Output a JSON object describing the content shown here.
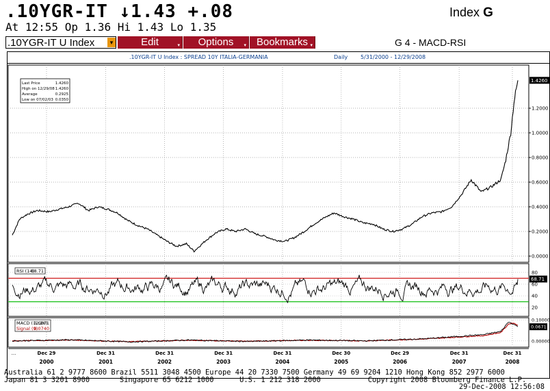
{
  "header": {
    "ticker_line": ".10YGR-IT ↓1.43 +.08",
    "index_label": "Index",
    "index_code": "G",
    "quote_line": "At 12:55  Op 1.36 Hi 1.43 Lo 1.35",
    "security": ".10YGR-IT U Index",
    "buttons": {
      "edit": "Edit",
      "options": "Options",
      "bookmarks": "Bookmarks"
    },
    "screen_name": "G 4 - MACD-RSI"
  },
  "chart_header": {
    "description": ".10YGR-IT U Index : SPREAD 10Y ITALIA-GERMANIA",
    "period": "Daily",
    "range": "5/31/2000 - 12/29/2008"
  },
  "colors": {
    "button_red": "#a11226",
    "security_caret": "#e8950c",
    "header_text": "#0b3f8e",
    "rsi_upper_line": "#d02020",
    "rsi_lower_line": "#16c016",
    "macd_signal": "#b00000",
    "price_line": "#000000"
  },
  "chart_data": [
    {
      "type": "line",
      "title": "",
      "panel": "price",
      "x": [
        "2000-05-31",
        "2000-07-15",
        "2000-09-01",
        "2000-11-01",
        "2001-01-15",
        "2001-03-15",
        "2001-05-15",
        "2001-07-15",
        "2001-09-15",
        "2001-11-15",
        "2002-01-15",
        "2002-03-15",
        "2002-05-15",
        "2002-07-15",
        "2002-09-15",
        "2002-11-15",
        "2003-01-15",
        "2003-03-15",
        "2003-05-15",
        "2003-07-02",
        "2003-09-15",
        "2003-11-15",
        "2004-01-15",
        "2004-03-15",
        "2004-05-15",
        "2004-07-15",
        "2004-09-15",
        "2004-11-15",
        "2005-01-15",
        "2005-03-15",
        "2005-05-15",
        "2005-07-15",
        "2005-09-15",
        "2005-11-15",
        "2006-01-15",
        "2006-03-15",
        "2006-05-15",
        "2006-07-15",
        "2006-09-15",
        "2006-11-15",
        "2007-01-15",
        "2007-03-15",
        "2007-05-15",
        "2007-07-15",
        "2007-09-15",
        "2007-11-15",
        "2008-01-15",
        "2008-03-15",
        "2008-05-15",
        "2008-07-15",
        "2008-09-15",
        "2008-10-15",
        "2008-11-15",
        "2008-12-05",
        "2008-12-29"
      ],
      "y": [
        0.17,
        0.3,
        0.34,
        0.37,
        0.36,
        0.38,
        0.4,
        0.43,
        0.37,
        0.4,
        0.38,
        0.35,
        0.29,
        0.25,
        0.22,
        0.17,
        0.12,
        0.08,
        0.1,
        0.04,
        0.13,
        0.19,
        0.22,
        0.2,
        0.22,
        0.18,
        0.16,
        0.13,
        0.12,
        0.15,
        0.2,
        0.26,
        0.31,
        0.35,
        0.32,
        0.3,
        0.27,
        0.26,
        0.22,
        0.2,
        0.22,
        0.26,
        0.32,
        0.35,
        0.36,
        0.4,
        0.5,
        0.62,
        0.52,
        0.56,
        0.62,
        0.78,
        1.0,
        1.25,
        1.426
      ],
      "ylim": [
        -0.05,
        1.55
      ],
      "y_ticks": [
        "0.0000",
        "0.2000",
        "0.4000",
        "0.6000",
        "0.8000",
        "1.0000",
        "1.2000"
      ],
      "last_value_label": "1.4260",
      "legend_box": {
        "rows": [
          {
            "label": "Last Price",
            "value": "1.4260"
          },
          {
            "label": "High on 12/29/08",
            "value": "1.4260"
          },
          {
            "label": "Average",
            "value": "0.2925"
          },
          {
            "label": "Low on 07/02/03",
            "value": "0.0350"
          }
        ]
      },
      "grid": true
    },
    {
      "type": "line",
      "panel": "rsi",
      "title": "",
      "legend": {
        "label": "RSI (14)",
        "value": "68.71"
      },
      "ylim": [
        5,
        95
      ],
      "y_ticks": [
        "20",
        "40",
        "60",
        "80"
      ],
      "last_value_label": "68.71",
      "reference_lines": [
        70,
        30
      ],
      "series_hint": "oscillating between 15 and 85, last 68.71"
    },
    {
      "type": "line",
      "panel": "macd",
      "title": "",
      "series": [
        {
          "name": "MACD (12,26)",
          "value": "0.0671"
        },
        {
          "name": "Signal (9)",
          "value": "0.0740"
        }
      ],
      "ylim": [
        -0.03,
        0.11
      ],
      "y_ticks": [
        "0.00000",
        "0.10000"
      ],
      "last_value_label": "0.0671",
      "x": [
        "2000-05-31",
        "2001-06-01",
        "2002-06-01",
        "2003-06-01",
        "2004-06-01",
        "2005-06-01",
        "2006-06-01",
        "2007-06-01",
        "2008-06-01",
        "2008-09-15",
        "2008-11-01",
        "2008-12-01",
        "2008-12-29"
      ],
      "macd": [
        0.0,
        0.005,
        -0.005,
        0.004,
        -0.003,
        0.004,
        0.0,
        0.01,
        0.03,
        0.045,
        0.09,
        0.08,
        0.0671
      ],
      "signal": [
        0.0,
        0.004,
        -0.004,
        0.003,
        -0.002,
        0.003,
        0.0,
        0.009,
        0.025,
        0.04,
        0.08,
        0.085,
        0.074
      ]
    }
  ],
  "x_axis": {
    "months": [
      "Dec 29",
      "Dec 31",
      "Dec 31",
      "Dec 31",
      "Dec 31",
      "Dec 30",
      "Dec 29",
      "Dec 31",
      "Dec 31"
    ],
    "years": [
      "2000",
      "2001",
      "2002",
      "2003",
      "2004",
      "2005",
      "2006",
      "2007",
      "2008"
    ],
    "start_marker": "..."
  },
  "footer": {
    "line1": "Australia 61 2 9777 8600 Brazil 5511 3048 4500 Europe 44 20 7330 7500 Germany 49 69 9204 1210 Hong Kong 852 2977 6000",
    "line2": "Japan 81 3 3201 8900       Singapore 65 6212 1000      U.S. 1 212 318 2000           Copyright 2008 Bloomberg Finance L.P.",
    "line3": "29-Dec-2008 12:56:08"
  }
}
